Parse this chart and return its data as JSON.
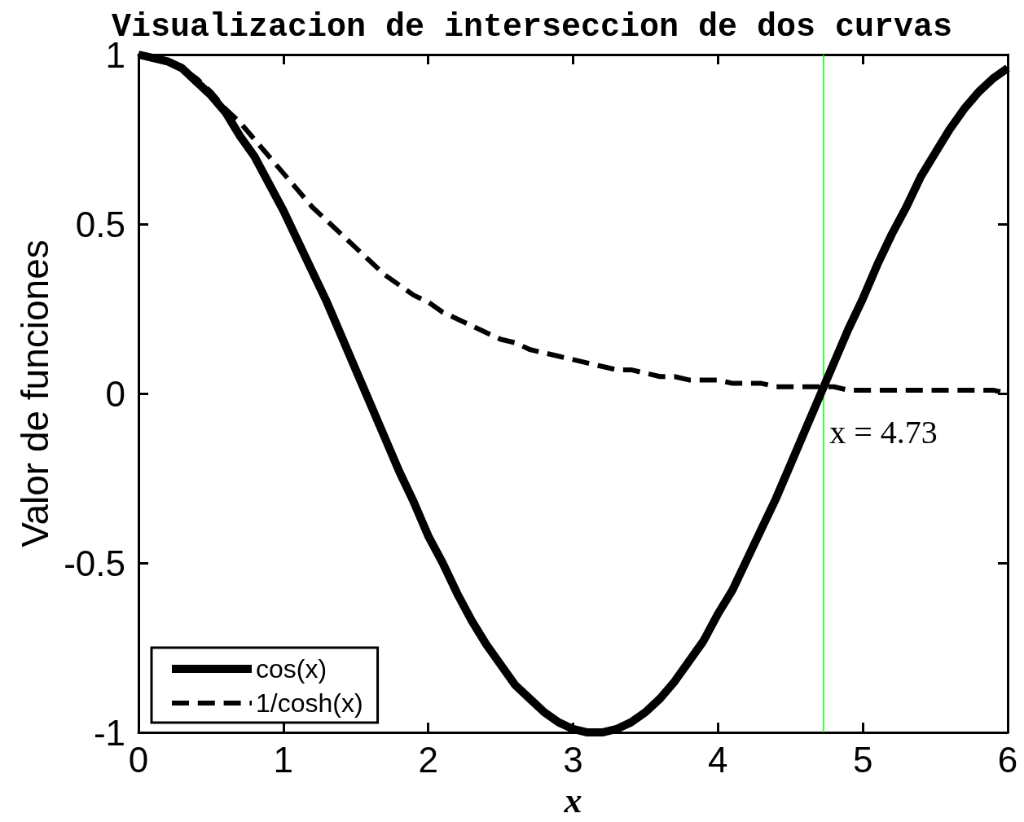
{
  "chart_data": {
    "type": "line",
    "title": "Visualizacion de interseccion de dos curvas",
    "xlabel": "x",
    "ylabel": "Valor de funciones",
    "x": [
      0,
      0.1,
      0.2,
      0.3,
      0.4,
      0.5,
      0.6,
      0.7,
      0.8,
      0.9,
      1,
      1.1,
      1.2,
      1.3,
      1.4,
      1.5,
      1.6,
      1.7,
      1.8,
      1.9,
      2,
      2.1,
      2.2,
      2.3,
      2.4,
      2.5,
      2.6,
      2.7,
      2.8,
      2.9,
      3,
      3.1,
      3.2,
      3.3,
      3.4,
      3.5,
      3.6,
      3.7,
      3.8,
      3.9,
      4,
      4.1,
      4.2,
      4.3,
      4.4,
      4.5,
      4.6,
      4.7,
      4.8,
      4.9,
      5,
      5.1,
      5.2,
      5.3,
      5.4,
      5.5,
      5.6,
      5.7,
      5.8,
      5.9,
      6
    ],
    "series": [
      {
        "name": "cos(x)",
        "color": "#000000",
        "line_style": "solid",
        "values": [
          1,
          0.99,
          0.98,
          0.96,
          0.92,
          0.88,
          0.83,
          0.76,
          0.7,
          0.62,
          0.54,
          0.45,
          0.36,
          0.27,
          0.17,
          0.07,
          -0.03,
          -0.13,
          -0.23,
          -0.32,
          -0.42,
          -0.5,
          -0.59,
          -0.67,
          -0.74,
          -0.8,
          -0.86,
          -0.9,
          -0.94,
          -0.97,
          -0.99,
          -1,
          -1,
          -0.99,
          -0.97,
          -0.94,
          -0.9,
          -0.85,
          -0.79,
          -0.73,
          -0.65,
          -0.58,
          -0.49,
          -0.4,
          -0.31,
          -0.21,
          -0.11,
          -0.01,
          0.09,
          0.19,
          0.28,
          0.38,
          0.47,
          0.55,
          0.64,
          0.71,
          0.78,
          0.84,
          0.89,
          0.93,
          0.96
        ]
      },
      {
        "name": "1/cosh(x)",
        "color": "#000000",
        "line_style": "dashed",
        "values": [
          1,
          0.99,
          0.98,
          0.96,
          0.93,
          0.89,
          0.84,
          0.8,
          0.75,
          0.7,
          0.65,
          0.6,
          0.55,
          0.51,
          0.47,
          0.43,
          0.39,
          0.35,
          0.32,
          0.29,
          0.27,
          0.24,
          0.22,
          0.2,
          0.18,
          0.16,
          0.15,
          0.13,
          0.12,
          0.11,
          0.1,
          0.09,
          0.08,
          0.07,
          0.07,
          0.06,
          0.05,
          0.05,
          0.04,
          0.04,
          0.04,
          0.03,
          0.03,
          0.03,
          0.02,
          0.02,
          0.02,
          0.02,
          0.02,
          0.01,
          0.01,
          0.01,
          0.01,
          0.01,
          0.01,
          0.01,
          0.01,
          0.01,
          0.01,
          0.01,
          0
        ]
      }
    ],
    "xlim": [
      0,
      6
    ],
    "xticks": [
      0,
      1,
      2,
      3,
      4,
      5,
      6
    ],
    "ylim": [
      -1,
      1
    ],
    "yticks": [
      -1,
      -0.5,
      0,
      0.5,
      1
    ],
    "ref_lines": [
      {
        "axis": "x",
        "value": 4.73,
        "color": "#00ff00",
        "label": "x = 4.73"
      }
    ],
    "legend": "bottom left",
    "marker": "none"
  }
}
